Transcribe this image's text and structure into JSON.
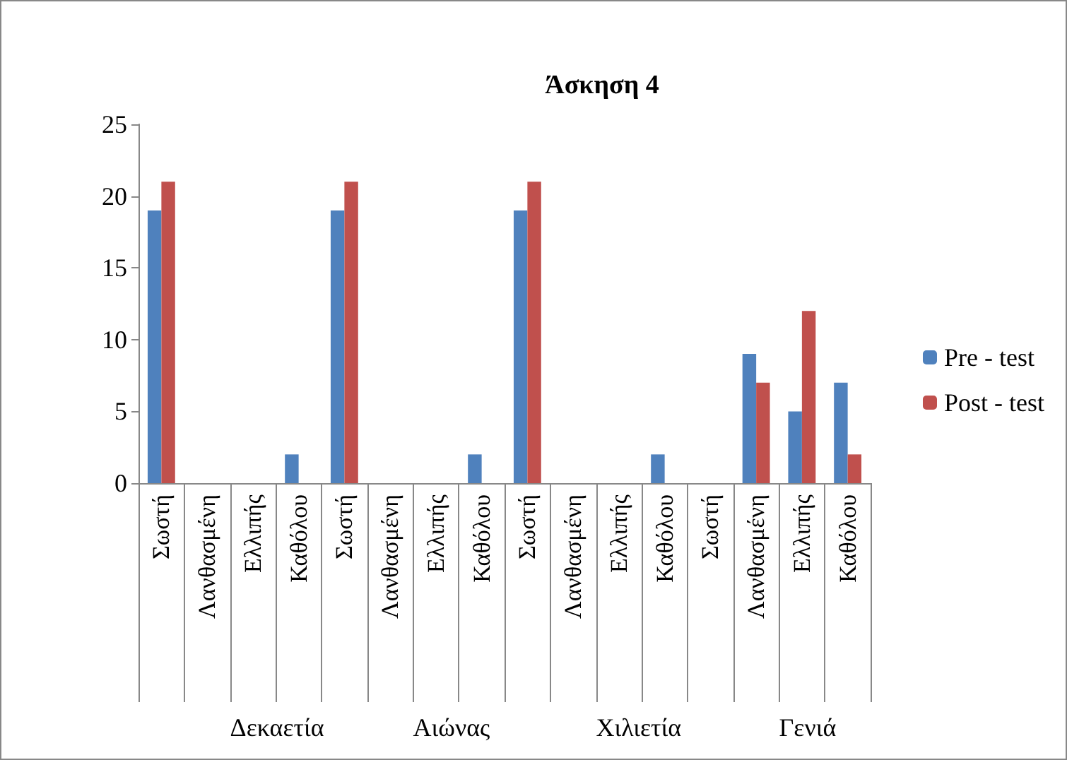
{
  "chart_data": {
    "type": "bar",
    "title": "Άσκηση 4",
    "categories": [
      "Σωστή",
      "Λανθασμένη",
      "Ελλιπής",
      "Καθόλου",
      "Σωστή",
      "Λανθασμένη",
      "Ελλιπής",
      "Καθόλου",
      "Σωστή",
      "Λανθασμένη",
      "Ελλιπής",
      "Καθόλου",
      "Σωστή",
      "Λανθασμένη",
      "Ελλιπής",
      "Καθόλου"
    ],
    "series": [
      {
        "name": "Pre - test",
        "color": "#4f81bd",
        "values": [
          19,
          0,
          0,
          2,
          19,
          0,
          0,
          2,
          19,
          0,
          0,
          2,
          0,
          9,
          5,
          7
        ]
      },
      {
        "name": "Post - test",
        "color": "#c0504d",
        "values": [
          21,
          0,
          0,
          0,
          21,
          0,
          0,
          0,
          21,
          0,
          0,
          0,
          0,
          7,
          12,
          2
        ]
      }
    ],
    "annotations": [
      "Δεκαετία",
      "Αιώνας",
      "Χιλιετία",
      "Γενιά"
    ],
    "ylim": [
      0,
      25
    ],
    "yticks": [
      0,
      5,
      10,
      15,
      20,
      25
    ],
    "grid": false,
    "legend": "right"
  }
}
